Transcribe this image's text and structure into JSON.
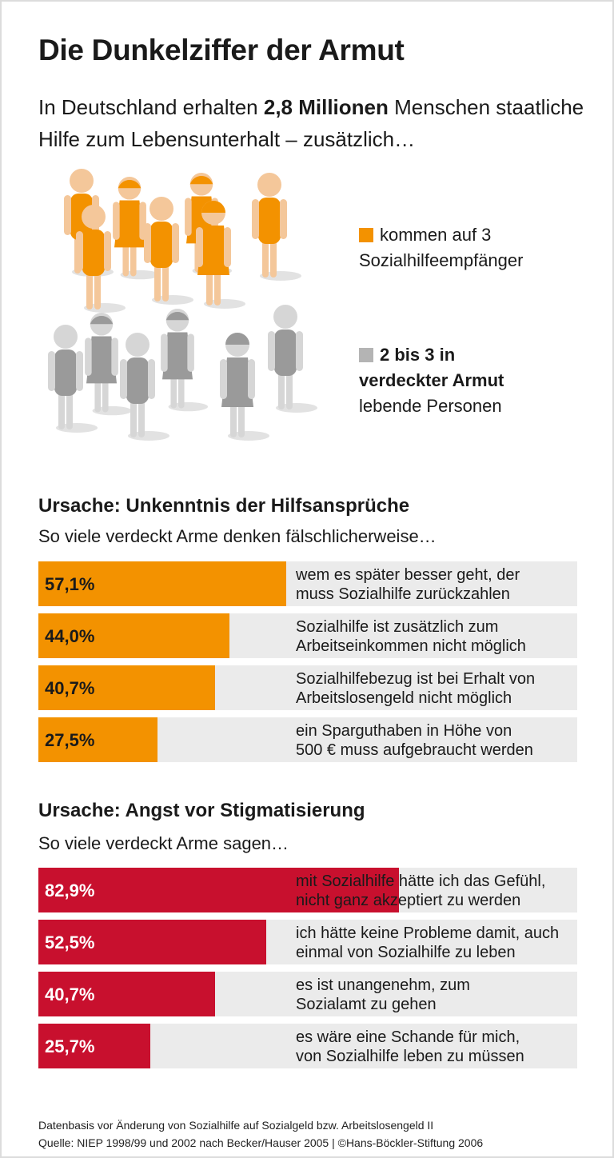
{
  "title": "Die Dunkelziffer der Armut",
  "intro": {
    "pre": "In Deutschland erhalten ",
    "bold": "2,8 Millionen",
    "post": " Menschen staatliche Hilfe zum Lebensunterhalt – zusätzlich…"
  },
  "legend": [
    {
      "color": "#f39200",
      "line1": "kommen auf 3",
      "line2": "Sozialhilfeempfänger",
      "line3": ""
    },
    {
      "color": "#b4b4b4",
      "line1": "2 bis 3 in",
      "line2": "verdeckter Armut",
      "line3": "lebende Personen"
    }
  ],
  "colors": {
    "orange": "#f39200",
    "red": "#c8102e",
    "grey_bg": "#ebebeb"
  },
  "chart_data": [
    {
      "type": "bar",
      "title": "Ursache: Unkenntnis der Hilfsansprüche",
      "subtitle": "So viele verdeckt Arme denken fälschlicherweise…",
      "unit": "%",
      "xlim": [
        0,
        124
      ],
      "rows": [
        {
          "value": 57.1,
          "value_label": "57,1%",
          "line1": "wem es später besser geht, der",
          "line2": "muss Sozialhilfe zurückzahlen"
        },
        {
          "value": 44.0,
          "value_label": "44,0%",
          "line1": "Sozialhilfe ist zusätzlich zum",
          "line2": "Arbeitseinkommen nicht möglich"
        },
        {
          "value": 40.7,
          "value_label": "40,7%",
          "line1": "Sozialhilfebezug ist bei Erhalt von",
          "line2": "Arbeitslosengeld nicht möglich"
        },
        {
          "value": 27.5,
          "value_label": "27,5%",
          "line1": "ein Sparguthaben in Höhe von",
          "line2": "500 € muss aufgebraucht werden"
        }
      ]
    },
    {
      "type": "bar",
      "title": "Ursache: Angst vor Stigmatisierung",
      "subtitle": "So viele verdeckt Arme sagen…",
      "unit": "%",
      "xlim": [
        0,
        124
      ],
      "rows": [
        {
          "value": 82.9,
          "value_label": "82,9%",
          "line1": "mit Sozialhilfe hätte ich das Gefühl,",
          "line2": "nicht ganz akzeptiert zu werden"
        },
        {
          "value": 52.5,
          "value_label": "52,5%",
          "line1": "ich hätte keine Probleme damit, auch",
          "line2": "einmal von Sozialhilfe zu leben"
        },
        {
          "value": 40.7,
          "value_label": "40,7%",
          "line1": "es ist unangenehm, zum",
          "line2": "Sozialamt zu gehen"
        },
        {
          "value": 25.7,
          "value_label": "25,7%",
          "line1": "es wäre eine Schande für mich,",
          "line2": "von Sozialhilfe leben zu müssen"
        }
      ]
    }
  ],
  "footer": {
    "line1": "Datenbasis vor Änderung von Sozialhilfe auf Sozialgeld bzw. Arbeitslosengeld II",
    "line2": "Quelle: NIEP 1998/99 und 2002 nach Becker/Hauser 2005 | ©Hans-Böckler-Stiftung 2006"
  }
}
